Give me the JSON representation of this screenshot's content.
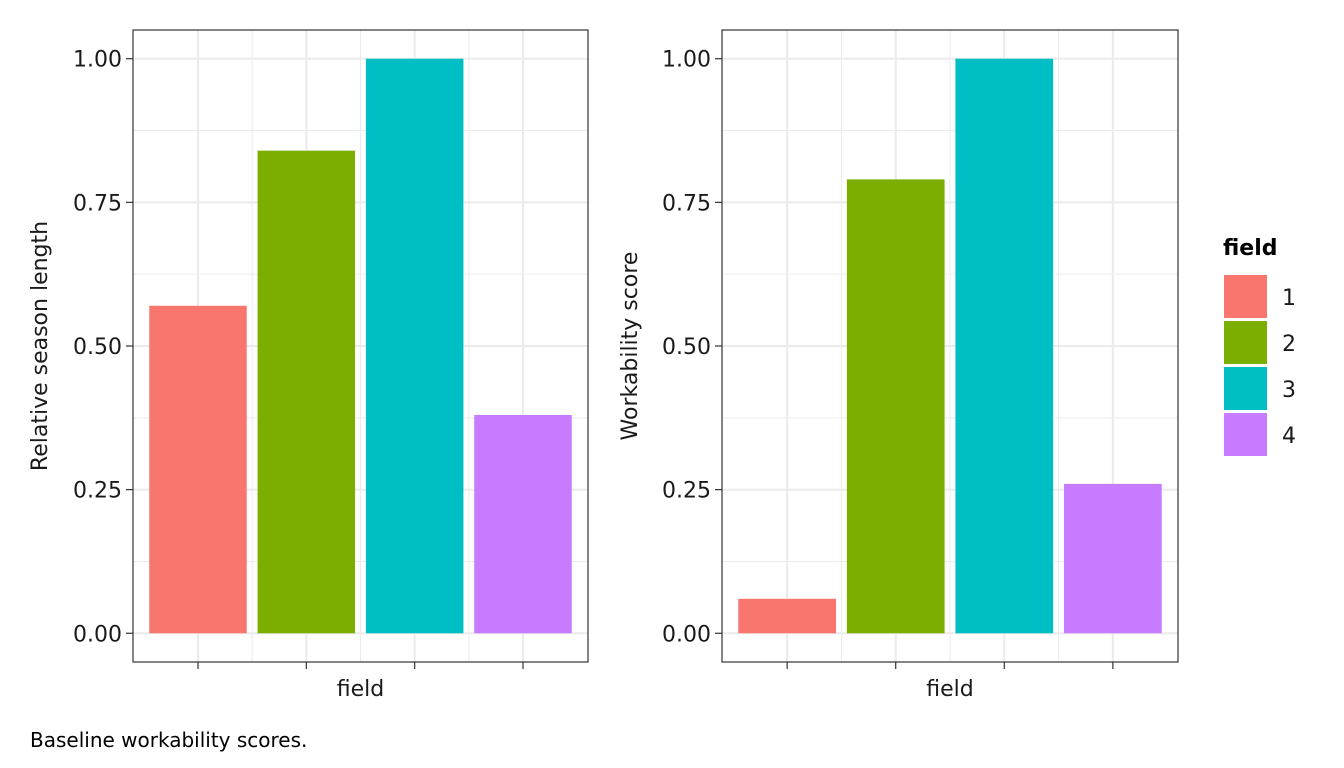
{
  "caption": "Baseline workability scores.",
  "chart_data": [
    {
      "type": "bar",
      "categories": [
        "1",
        "2",
        "3",
        "4"
      ],
      "values": [
        0.57,
        0.84,
        1.0,
        0.38
      ],
      "xlabel": "field",
      "ylabel": "Relative season length",
      "ylim": [
        -0.05,
        1.05
      ],
      "yticks": [
        0.0,
        0.25,
        0.5,
        0.75,
        1.0
      ],
      "ytick_labels": [
        "0.00",
        "0.25",
        "0.50",
        "0.75",
        "1.00"
      ],
      "grid": true
    },
    {
      "type": "bar",
      "categories": [
        "1",
        "2",
        "3",
        "4"
      ],
      "values": [
        0.06,
        0.79,
        1.0,
        0.26
      ],
      "xlabel": "field",
      "ylabel": "Workability score",
      "ylim": [
        -0.05,
        1.05
      ],
      "yticks": [
        0.0,
        0.25,
        0.5,
        0.75,
        1.0
      ],
      "ytick_labels": [
        "0.00",
        "0.25",
        "0.50",
        "0.75",
        "1.00"
      ],
      "grid": true
    }
  ],
  "legend": {
    "title": "field",
    "placement": "right",
    "items": [
      {
        "label": "1",
        "color": "#F8766D"
      },
      {
        "label": "2",
        "color": "#7CAE00"
      },
      {
        "label": "3",
        "color": "#00BFC4"
      },
      {
        "label": "4",
        "color": "#C77CFF"
      }
    ]
  }
}
